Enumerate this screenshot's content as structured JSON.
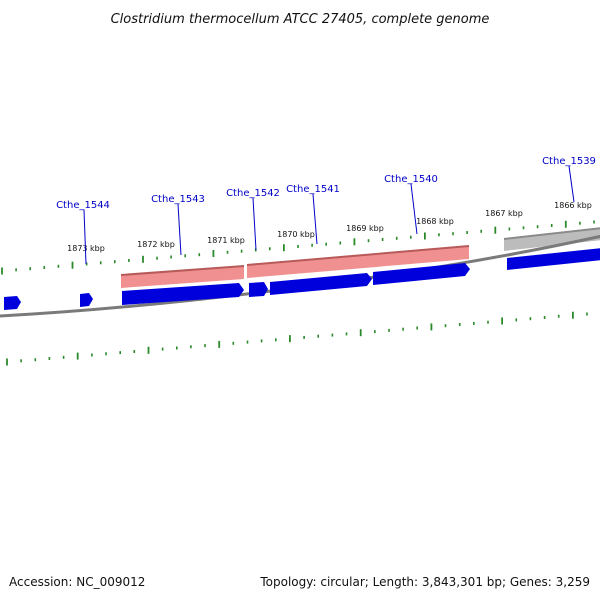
{
  "title": "Clostridium thermocellum ATCC 27405, complete genome",
  "footer": {
    "accession": "Accession: NC_009012",
    "summary": "Topology: circular; Length: 3,843,301 bp; Genes: 3,259"
  },
  "colors": {
    "tick": "#2a8a2a",
    "backbone": "#7a7a7a",
    "cds_forward": "#0000dd",
    "feature_pink": "#e88080",
    "feature_gray": "#bdbdbd",
    "label": "#0000c8"
  },
  "scale_labels": [
    "1873 kbp",
    "1872 kbp",
    "1871 kbp",
    "1870 kbp",
    "1869 kbp",
    "1868 kbp",
    "1867 kbp",
    "1866 kbp"
  ],
  "gene_labels": [
    "Cthe_1544",
    "Cthe_1543",
    "Cthe_1542",
    "Cthe_1541",
    "Cthe_1540",
    "Cthe_1539"
  ]
}
